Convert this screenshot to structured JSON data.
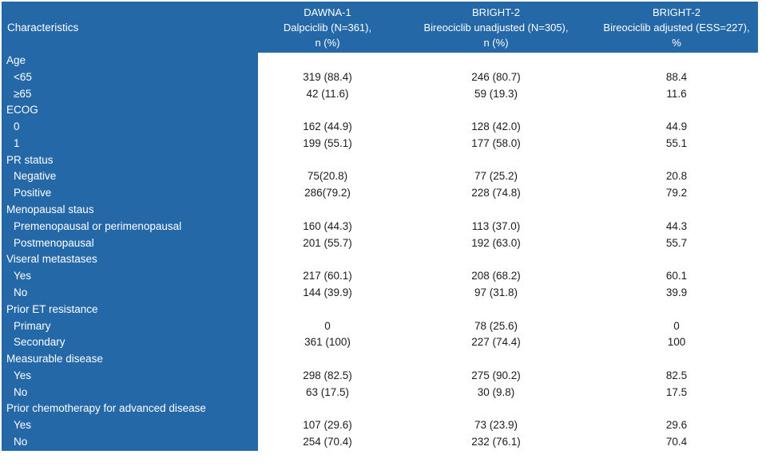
{
  "colors": {
    "header_blue": "#2468A8",
    "header_text": "#ffffff",
    "body_text": "#1c1c1c",
    "background": "#ffffff"
  },
  "table": {
    "columns": [
      {
        "id": "characteristics",
        "lines": [
          "Characteristics"
        ]
      },
      {
        "id": "dawna1",
        "lines": [
          "DAWNA-1",
          "Dalpciclib (N=361),",
          "n (%)"
        ]
      },
      {
        "id": "bright2-unadjusted",
        "lines": [
          "BRIGHT-2",
          "Bireociclib unadjusted (N=305),",
          "n (%)"
        ]
      },
      {
        "id": "bright2-adjusted",
        "lines": [
          "BRIGHT-2",
          "Bireociclib adjusted (ESS=227),",
          "%"
        ]
      }
    ],
    "rows": [
      {
        "label": "Age",
        "indent": false,
        "values": [
          "",
          "",
          ""
        ]
      },
      {
        "label": "<65",
        "indent": true,
        "values": [
          "319 (88.4)",
          "246 (80.7)",
          "88.4"
        ]
      },
      {
        "label": "≥65",
        "indent": true,
        "values": [
          "42 (11.6)",
          "59 (19.3)",
          "11.6"
        ]
      },
      {
        "label": "ECOG",
        "indent": false,
        "values": [
          "",
          "",
          ""
        ]
      },
      {
        "label": "0",
        "indent": true,
        "values": [
          "162 (44.9)",
          "128 (42.0)",
          "44.9"
        ]
      },
      {
        "label": "1",
        "indent": true,
        "values": [
          "199 (55.1)",
          "177 (58.0)",
          "55.1"
        ]
      },
      {
        "label": "PR status",
        "indent": false,
        "values": [
          "",
          "",
          ""
        ]
      },
      {
        "label": "Negative",
        "indent": true,
        "values": [
          "75(20.8)",
          "77 (25.2)",
          "20.8"
        ]
      },
      {
        "label": "Positive",
        "indent": true,
        "values": [
          "286(79.2)",
          "228 (74.8)",
          "79.2"
        ]
      },
      {
        "label": "Menopausal staus",
        "indent": false,
        "values": [
          "",
          "",
          ""
        ]
      },
      {
        "label": "Premenopausal or perimenopausal",
        "indent": true,
        "values": [
          "160 (44.3)",
          "113 (37.0)",
          "44.3"
        ]
      },
      {
        "label": "Postmenopausal",
        "indent": true,
        "values": [
          "201 (55.7)",
          "192 (63.0)",
          "55.7"
        ]
      },
      {
        "label": "Viseral metastases",
        "indent": false,
        "values": [
          "",
          "",
          ""
        ]
      },
      {
        "label": "Yes",
        "indent": true,
        "values": [
          "217 (60.1)",
          "208 (68.2)",
          "60.1"
        ]
      },
      {
        "label": "No",
        "indent": true,
        "values": [
          "144 (39.9)",
          "97 (31.8)",
          "39.9"
        ]
      },
      {
        "label": "Prior ET resistance",
        "indent": false,
        "values": [
          "",
          "",
          ""
        ]
      },
      {
        "label": "Primary",
        "indent": true,
        "values": [
          "0",
          "78 (25.6)",
          "0"
        ]
      },
      {
        "label": "Secondary",
        "indent": true,
        "values": [
          "361 (100)",
          "227 (74.4)",
          "100"
        ]
      },
      {
        "label": "Measurable disease",
        "indent": false,
        "values": [
          "",
          "",
          ""
        ]
      },
      {
        "label": "Yes",
        "indent": true,
        "values": [
          "298 (82.5)",
          "275 (90.2)",
          "82.5"
        ]
      },
      {
        "label": "No",
        "indent": true,
        "values": [
          "63 (17.5)",
          "30 (9.8)",
          "17.5"
        ]
      },
      {
        "label": "Prior chemotherapy for advanced disease",
        "indent": false,
        "values": [
          "",
          "",
          ""
        ]
      },
      {
        "label": "Yes",
        "indent": true,
        "values": [
          "107 (29.6)",
          "73 (23.9)",
          "29.6"
        ]
      },
      {
        "label": "No",
        "indent": true,
        "values": [
          "254 (70.4)",
          "232 (76.1)",
          "70.4"
        ]
      }
    ]
  }
}
